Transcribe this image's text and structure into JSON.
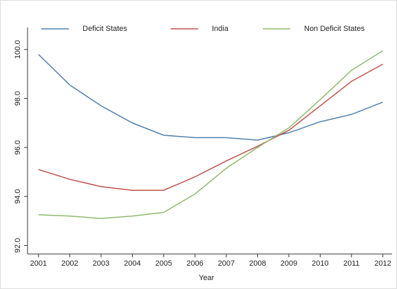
{
  "chart_data": {
    "type": "line",
    "xlabel": "Year",
    "x": [
      2001,
      2002,
      2003,
      2004,
      2005,
      2006,
      2007,
      2008,
      2009,
      2010,
      2011,
      2012
    ],
    "series": [
      {
        "name": "Deficit States",
        "color": "#4f7fb0",
        "values": [
          99.8,
          98.55,
          97.7,
          97.0,
          96.5,
          96.4,
          96.4,
          96.3,
          96.6,
          97.05,
          97.35,
          97.85
        ]
      },
      {
        "name": "India",
        "color": "#c0504d",
        "values": [
          95.1,
          94.7,
          94.4,
          94.25,
          94.25,
          94.8,
          95.45,
          96.05,
          96.7,
          97.7,
          98.7,
          99.4
        ]
      },
      {
        "name": "Non Deficit States",
        "color": "#8fb96a",
        "values": [
          93.25,
          93.2,
          93.1,
          93.2,
          93.35,
          94.1,
          95.15,
          96.0,
          96.8,
          97.95,
          99.15,
          99.95
        ]
      }
    ],
    "xlim": [
      2000.65,
      2012.3
    ],
    "xticks": [
      2001,
      2002,
      2003,
      2004,
      2005,
      2006,
      2007,
      2008,
      2009,
      2010,
      2011,
      2012
    ],
    "ylim": [
      91.65,
      100.9
    ],
    "yticks": [
      {
        "value": 92,
        "label": "92.0"
      },
      {
        "value": 94,
        "label": "94.0"
      },
      {
        "value": 96,
        "label": "96.0"
      },
      {
        "value": 98,
        "label": "98.0"
      },
      {
        "value": 100,
        "label": "100.0"
      }
    ],
    "legend": "top"
  }
}
